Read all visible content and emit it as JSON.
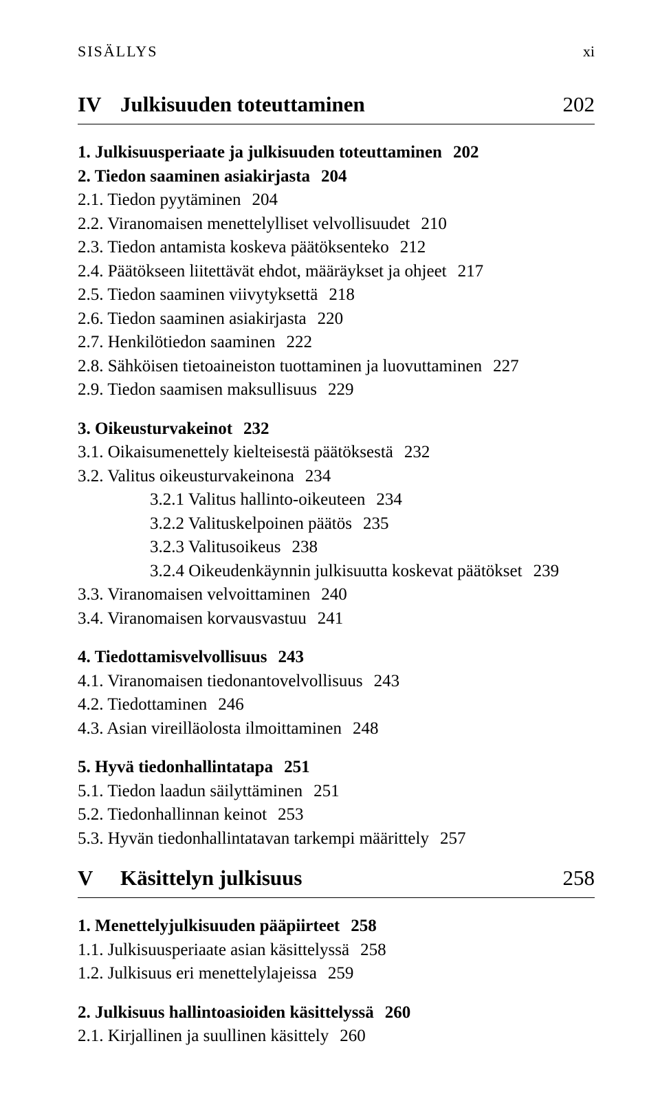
{
  "runningHead": {
    "left": "SISÄLLYS",
    "right": "xi"
  },
  "parts": [
    {
      "roman": "IV",
      "title": "Julkisuuden toteuttaminen",
      "page": "202",
      "blocks": [
        {
          "entries": [
            {
              "level": 1,
              "bold": true,
              "num": "1.",
              "title": "Julkisuusperiaate ja julkisuuden toteuttaminen",
              "page": "202"
            },
            {
              "level": 1,
              "bold": true,
              "num": "2.",
              "title": "Tiedon saaminen asiakirjasta",
              "page": "204"
            },
            {
              "level": 1,
              "bold": false,
              "num": "2.1.",
              "title": "Tiedon pyytäminen",
              "page": "204"
            },
            {
              "level": 1,
              "bold": false,
              "num": "2.2.",
              "title": "Viranomaisen menettelylliset velvollisuudet",
              "page": "210"
            },
            {
              "level": 1,
              "bold": false,
              "num": "2.3.",
              "title": "Tiedon antamista koskeva päätöksenteko",
              "page": "212"
            },
            {
              "level": 1,
              "bold": false,
              "num": "2.4.",
              "title": "Päätökseen liitettävät ehdot, määräykset ja ohjeet",
              "page": "217"
            },
            {
              "level": 1,
              "bold": false,
              "num": "2.5.",
              "title": "Tiedon saaminen viivytyksettä",
              "page": "218"
            },
            {
              "level": 1,
              "bold": false,
              "num": "2.6.",
              "title": "Tiedon saaminen asiakirjasta",
              "page": "220"
            },
            {
              "level": 1,
              "bold": false,
              "num": "2.7.",
              "title": "Henkilötiedon saaminen",
              "page": "222"
            },
            {
              "level": 1,
              "bold": false,
              "num": "2.8.",
              "title": "Sähköisen tietoaineiston tuottaminen ja luovuttaminen",
              "page": "227"
            },
            {
              "level": 1,
              "bold": false,
              "num": "2.9.",
              "title": "Tiedon saamisen maksullisuus",
              "page": "229"
            }
          ]
        },
        {
          "entries": [
            {
              "level": 1,
              "bold": true,
              "num": "3.",
              "title": "Oikeusturvakeinot",
              "page": "232"
            },
            {
              "level": 1,
              "bold": false,
              "num": "3.1.",
              "title": "Oikaisumenettely kielteisestä päätöksestä",
              "page": "232"
            },
            {
              "level": 1,
              "bold": false,
              "num": "3.2.",
              "title": "Valitus oikeusturvakeinona",
              "page": "234"
            },
            {
              "level": 2,
              "bold": false,
              "num": "3.2.1",
              "title": "Valitus hallinto-oikeuteen",
              "page": "234"
            },
            {
              "level": 2,
              "bold": false,
              "num": "3.2.2",
              "title": "Valituskelpoinen päätös",
              "page": "235"
            },
            {
              "level": 2,
              "bold": false,
              "num": "3.2.3",
              "title": "Valitusoikeus",
              "page": "238"
            },
            {
              "level": 2,
              "bold": false,
              "num": "3.2.4",
              "title": "Oikeudenkäynnin julkisuutta koskevat päätökset",
              "page": "239"
            },
            {
              "level": 1,
              "bold": false,
              "num": "3.3.",
              "title": "Viranomaisen velvoittaminen",
              "page": "240"
            },
            {
              "level": 1,
              "bold": false,
              "num": "3.4.",
              "title": "Viranomaisen korvausvastuu",
              "page": "241"
            }
          ]
        },
        {
          "entries": [
            {
              "level": 1,
              "bold": true,
              "num": "4.",
              "title": "Tiedottamisvelvollisuus",
              "page": "243"
            },
            {
              "level": 1,
              "bold": false,
              "num": "4.1.",
              "title": "Viranomaisen tiedonantovelvollisuus",
              "page": "243"
            },
            {
              "level": 1,
              "bold": false,
              "num": "4.2.",
              "title": "Tiedottaminen",
              "page": "246"
            },
            {
              "level": 1,
              "bold": false,
              "num": "4.3.",
              "title": "Asian vireilläolosta ilmoittaminen",
              "page": "248"
            }
          ]
        },
        {
          "entries": [
            {
              "level": 1,
              "bold": true,
              "num": "5.",
              "title": "Hyvä tiedonhallintatapa",
              "page": "251"
            },
            {
              "level": 1,
              "bold": false,
              "num": "5.1.",
              "title": "Tiedon laadun säilyttäminen",
              "page": "251"
            },
            {
              "level": 1,
              "bold": false,
              "num": "5.2.",
              "title": "Tiedonhallinnan keinot",
              "page": "253"
            },
            {
              "level": 1,
              "bold": false,
              "num": "5.3.",
              "title": "Hyvän tiedonhallintatavan tarkempi määrittely",
              "page": "257"
            }
          ]
        }
      ]
    },
    {
      "roman": "V",
      "title": "Käsittelyn julkisuus",
      "page": "258",
      "blocks": [
        {
          "entries": [
            {
              "level": 1,
              "bold": true,
              "num": "1.",
              "title": "Menettelyjulkisuuden pääpiirteet",
              "page": "258"
            },
            {
              "level": 1,
              "bold": false,
              "num": "1.1.",
              "title": "Julkisuusperiaate asian käsittelyssä",
              "page": "258"
            },
            {
              "level": 1,
              "bold": false,
              "num": "1.2.",
              "title": "Julkisuus eri menettelylajeissa",
              "page": "259"
            }
          ]
        },
        {
          "entries": [
            {
              "level": 1,
              "bold": true,
              "num": "2.",
              "title": "Julkisuus hallintoasioiden käsittelyssä",
              "page": "260"
            },
            {
              "level": 1,
              "bold": false,
              "num": "2.1.",
              "title": "Kirjallinen ja suullinen käsittely",
              "page": "260"
            }
          ]
        }
      ]
    }
  ]
}
